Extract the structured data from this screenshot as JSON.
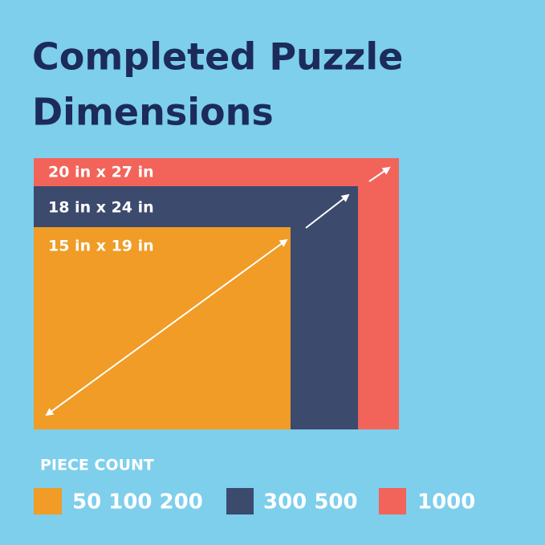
{
  "header": {
    "title_lines": [
      "Completed Puzzle",
      "Dimensions"
    ]
  },
  "sizes": [
    {
      "label": "20 in x 27 in"
    },
    {
      "label": "18 in x 24 in"
    },
    {
      "label": "15 in x 19 in"
    }
  ],
  "legend": {
    "title": "PIECE COUNT",
    "items": [
      {
        "label": "50 100 200"
      },
      {
        "label": "300 500"
      },
      {
        "label": "1000"
      }
    ]
  }
}
